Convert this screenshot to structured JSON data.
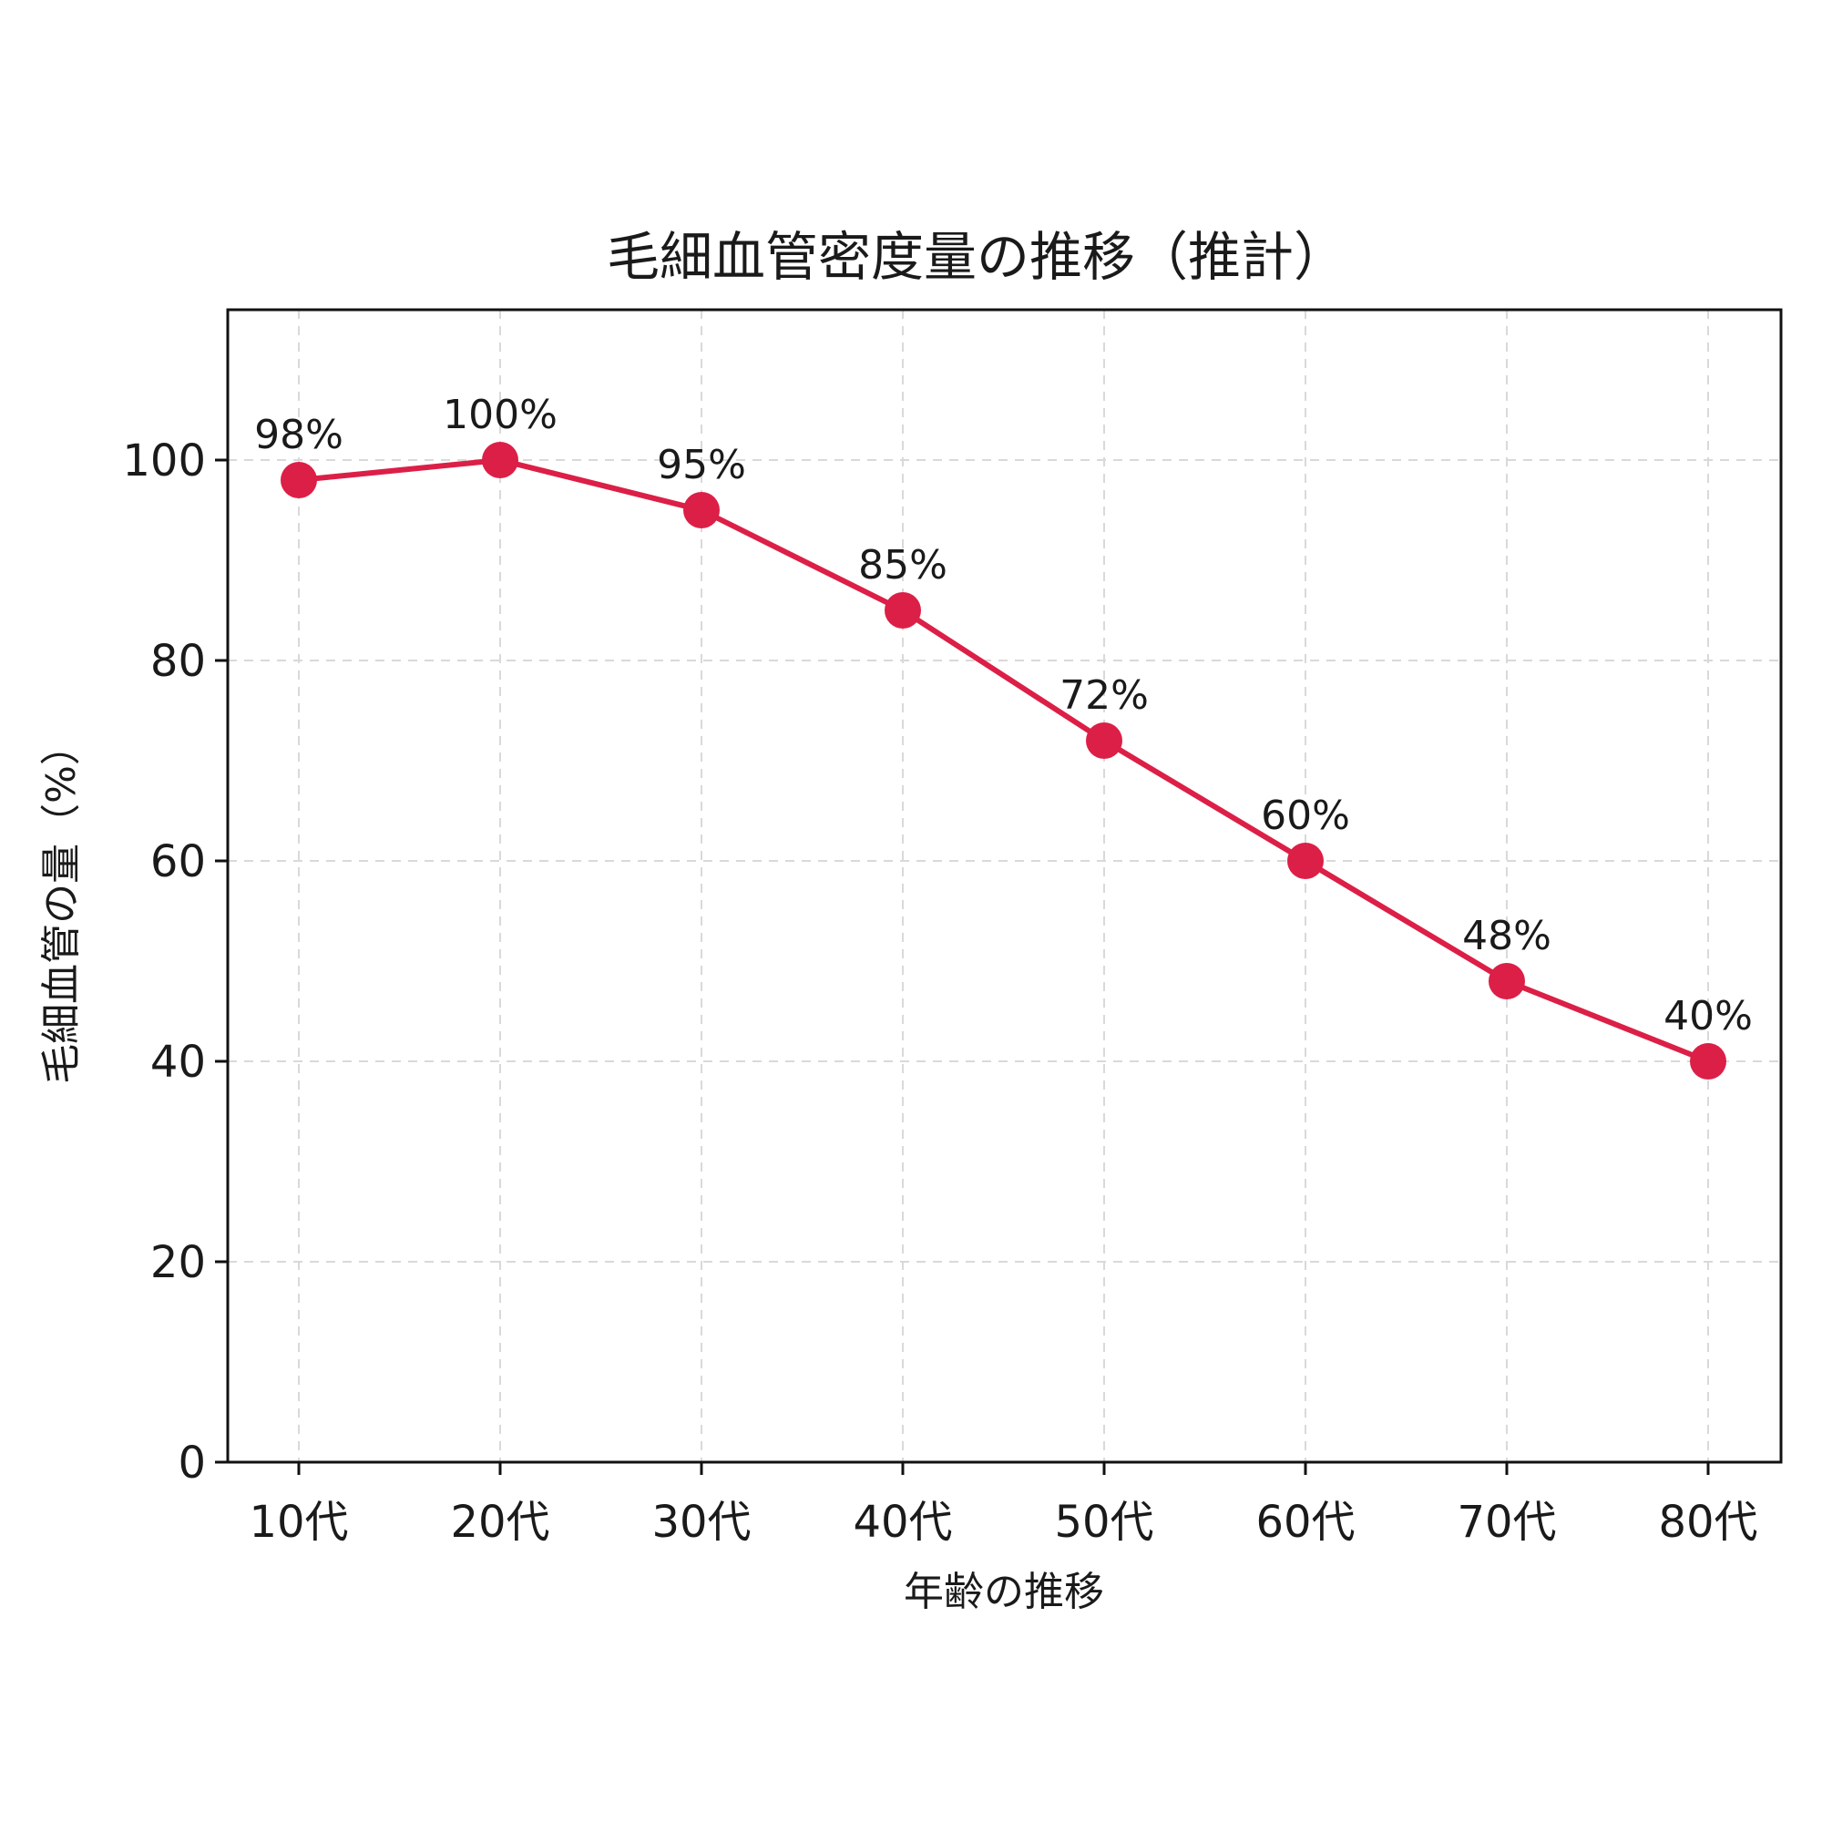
{
  "chart_data": {
    "type": "line",
    "title": "毛細血管密度量の推移（推計）",
    "xlabel": "年齢の推移",
    "ylabel": "毛細血管の量（%）",
    "categories": [
      "10代",
      "20代",
      "30代",
      "40代",
      "50代",
      "60代",
      "70代",
      "80代"
    ],
    "values": [
      98,
      100,
      95,
      85,
      72,
      60,
      48,
      40
    ],
    "data_labels": [
      "98%",
      "100%",
      "95%",
      "85%",
      "72%",
      "60%",
      "48%",
      "40%"
    ],
    "y_ticks": [
      0,
      20,
      40,
      60,
      80,
      100
    ],
    "ylim": [
      0,
      115
    ],
    "grid": true,
    "legend": "none",
    "line_color": "#dc1f47",
    "grid_color": "#d9d9d9"
  }
}
